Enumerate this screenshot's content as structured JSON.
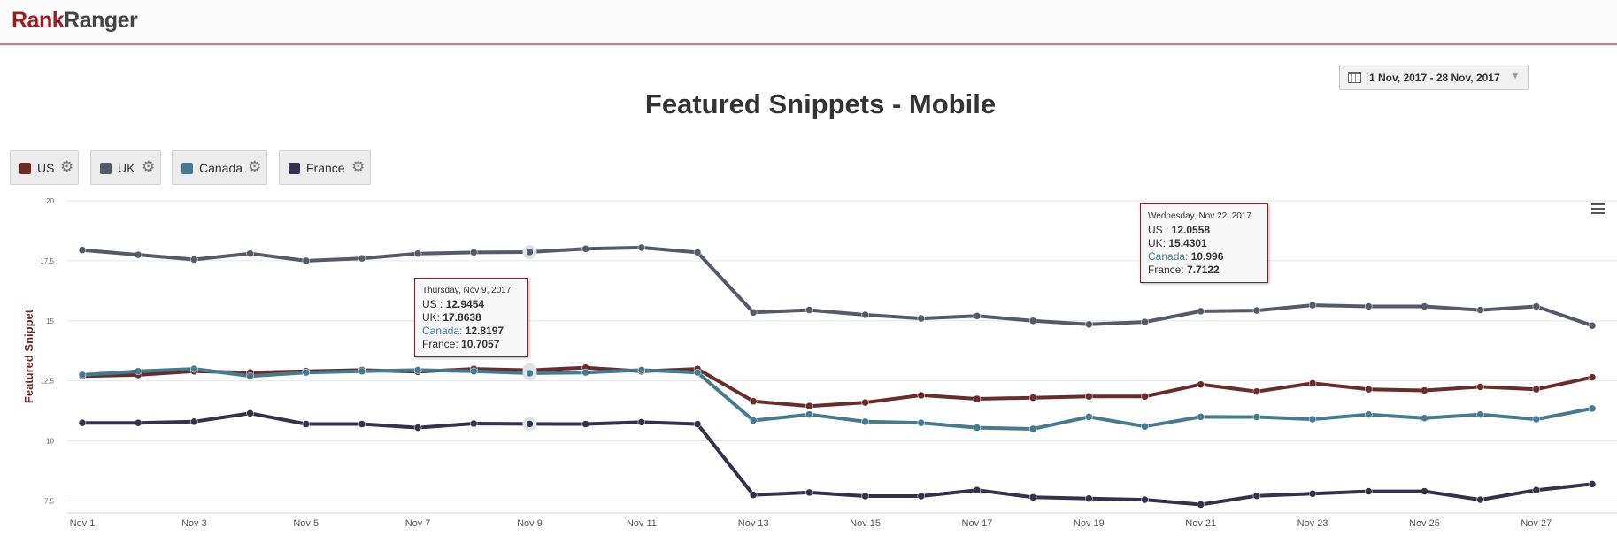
{
  "header": {
    "logo_part1": "Rank",
    "logo_part2": "Ranger"
  },
  "date_range": {
    "label": "1 Nov, 2017 - 28 Nov, 2017"
  },
  "chart_data": {
    "type": "line",
    "title": "Featured Snippets - Mobile",
    "ylabel": "Featured Snippet",
    "xlabel": "",
    "ylim": [
      7,
      20
    ],
    "yticks": [
      "7.5",
      "10",
      "12.5",
      "15",
      "17.5",
      "20"
    ],
    "ytick_values": [
      7.5,
      10,
      12.5,
      15,
      17.5,
      20
    ],
    "x": [
      "Nov 1",
      "Nov 2",
      "Nov 3",
      "Nov 4",
      "Nov 5",
      "Nov 6",
      "Nov 7",
      "Nov 8",
      "Nov 9",
      "Nov 10",
      "Nov 11",
      "Nov 12",
      "Nov 13",
      "Nov 14",
      "Nov 15",
      "Nov 16",
      "Nov 17",
      "Nov 18",
      "Nov 19",
      "Nov 20",
      "Nov 21",
      "Nov 22",
      "Nov 23",
      "Nov 24",
      "Nov 25",
      "Nov 26",
      "Nov 27",
      "Nov 28"
    ],
    "xtick_labels": [
      "Nov 1",
      "Nov 3",
      "Nov 5",
      "Nov 7",
      "Nov 9",
      "Nov 11",
      "Nov 13",
      "Nov 15",
      "Nov 17",
      "Nov 19",
      "Nov 21",
      "Nov 23",
      "Nov 25",
      "Nov 27"
    ],
    "grid": true,
    "series": [
      {
        "name": "US",
        "color": "#6a2b2c",
        "values": [
          12.7,
          12.75,
          12.9,
          12.85,
          12.9,
          12.95,
          12.88,
          13.0,
          12.9454,
          13.05,
          12.9,
          13.0,
          11.65,
          11.45,
          11.6,
          11.9,
          11.75,
          11.8,
          11.85,
          11.85,
          12.35,
          12.0558,
          12.4,
          12.15,
          12.1,
          12.25,
          12.15,
          12.65
        ]
      },
      {
        "name": "UK",
        "color": "#555a66",
        "values": [
          17.95,
          17.75,
          17.55,
          17.8,
          17.5,
          17.6,
          17.8,
          17.85,
          17.8638,
          18.0,
          18.05,
          17.85,
          15.35,
          15.45,
          15.25,
          15.1,
          15.2,
          15.0,
          14.85,
          14.95,
          15.4,
          15.4301,
          15.65,
          15.6,
          15.6,
          15.45,
          15.6,
          14.8
        ]
      },
      {
        "name": "Canada",
        "color": "#467b8c",
        "values": [
          12.75,
          12.9,
          13.0,
          12.7,
          12.85,
          12.9,
          12.95,
          12.9,
          12.8197,
          12.85,
          12.95,
          12.85,
          10.85,
          11.1,
          10.8,
          10.75,
          10.55,
          10.5,
          11.0,
          10.6,
          11.0,
          10.996,
          10.9,
          11.1,
          10.95,
          11.1,
          10.9,
          11.35
        ]
      },
      {
        "name": "France",
        "color": "#343248",
        "values": [
          10.75,
          10.75,
          10.8,
          11.15,
          10.7,
          10.7,
          10.55,
          10.72,
          10.7057,
          10.7,
          10.78,
          10.7,
          7.75,
          7.85,
          7.7,
          7.7,
          7.95,
          7.65,
          7.6,
          7.55,
          7.35,
          7.7122,
          7.8,
          7.9,
          7.9,
          7.55,
          7.95,
          8.2
        ]
      }
    ],
    "legend": {
      "placement": "top-left",
      "items": [
        "US",
        "UK",
        "Canada",
        "France"
      ]
    },
    "tooltips": [
      {
        "date": "Thursday, Nov 9, 2017",
        "index": 8,
        "rows": [
          {
            "label": "US : ",
            "value": "12.9454"
          },
          {
            "label": "UK: ",
            "value": "17.8638"
          },
          {
            "label": "Canada: ",
            "value": "12.8197"
          },
          {
            "label": "France: ",
            "value": "10.7057"
          }
        ]
      },
      {
        "date": "Wednesday, Nov 22, 2017",
        "index": 21,
        "rows": [
          {
            "label": "US : ",
            "value": "12.0558"
          },
          {
            "label": "UK: ",
            "value": "15.4301"
          },
          {
            "label": "Canada: ",
            "value": "10.996"
          },
          {
            "label": "France: ",
            "value": "7.7122"
          }
        ]
      }
    ]
  }
}
